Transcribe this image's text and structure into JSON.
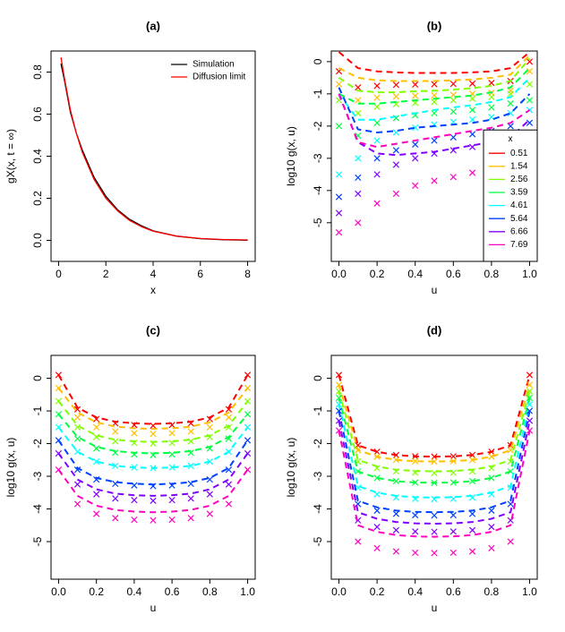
{
  "chart_data": [
    {
      "type": "line",
      "title": "(a)",
      "xlabel": "x",
      "ylabel": "gX(x, t = ∞)",
      "x": [
        0.1,
        0.25,
        0.5,
        0.75,
        1,
        1.5,
        2,
        2.5,
        3,
        3.5,
        4,
        5,
        6,
        7,
        8
      ],
      "series": [
        {
          "name": "Simulation",
          "color": "#000000",
          "values": [
            0.84,
            0.76,
            0.61,
            0.51,
            0.43,
            0.3,
            0.21,
            0.145,
            0.1,
            0.07,
            0.045,
            0.02,
            0.008,
            0.003,
            0.001
          ]
        },
        {
          "name": "Diffusion limit",
          "color": "#FF0000",
          "values": [
            0.87,
            0.77,
            0.62,
            0.51,
            0.42,
            0.29,
            0.2,
            0.14,
            0.095,
            0.065,
            0.044,
            0.02,
            0.009,
            0.004,
            0.002
          ]
        }
      ],
      "xlim": [
        -0.32,
        8.32
      ],
      "xticks": [
        0,
        2,
        4,
        6,
        8
      ],
      "ylim": [
        -0.1,
        0.9
      ],
      "yticks": [
        {
          "value": 0,
          "label": "0.0"
        },
        0.2,
        0.4,
        0.6,
        0.8
      ],
      "legend": "topright",
      "legend_box": false
    },
    {
      "type": "scatter",
      "title": "(b)",
      "xlabel": "u",
      "ylabel": "log10 g(x, u)",
      "legend_title": "x",
      "x": [
        0,
        0.1,
        0.2,
        0.3,
        0.4,
        0.5,
        0.6,
        0.7,
        0.8,
        0.9,
        1
      ],
      "series": [
        {
          "name": "0.51",
          "color": "#FF0000",
          "values": [
            -0.3,
            -0.8,
            -0.75,
            -0.72,
            -0.71,
            -0.7,
            -0.69,
            -0.68,
            -0.66,
            -0.6,
            0.0
          ],
          "line_values": [
            0.3,
            -0.2,
            -0.3,
            -0.33,
            -0.35,
            -0.35,
            -0.35,
            -0.33,
            -0.3,
            -0.2,
            0.3
          ]
        },
        {
          "name": "1.54",
          "color": "#FFBF00",
          "values": [
            -0.7,
            -1.2,
            -1.12,
            -1.08,
            -1.06,
            -1.05,
            -1.03,
            -1.0,
            -0.97,
            -0.9,
            -0.3
          ],
          "line_values": [
            -0.2,
            -0.5,
            -0.58,
            -0.6,
            -0.6,
            -0.6,
            -0.58,
            -0.55,
            -0.5,
            -0.4,
            0.2
          ]
        },
        {
          "name": "2.56",
          "color": "#80FF00",
          "values": [
            -1.2,
            -1.6,
            -1.4,
            -1.32,
            -1.28,
            -1.25,
            -1.2,
            -1.15,
            -1.1,
            -1.0,
            -0.7
          ],
          "line_values": [
            -0.5,
            -0.9,
            -0.95,
            -0.95,
            -0.92,
            -0.9,
            -0.87,
            -0.82,
            -0.75,
            -0.6,
            0.1
          ]
        },
        {
          "name": "3.59",
          "color": "#00FF40",
          "values": [
            -2.0,
            -2.3,
            -1.9,
            -1.75,
            -1.66,
            -1.6,
            -1.55,
            -1.5,
            -1.42,
            -1.3,
            -1.2
          ],
          "line_values": [
            -1.0,
            -1.3,
            -1.3,
            -1.25,
            -1.2,
            -1.15,
            -1.1,
            -1.05,
            -0.95,
            -0.8,
            -0.2
          ]
        },
        {
          "name": "4.61",
          "color": "#00FFFF",
          "values": [
            -3.5,
            -3.0,
            -2.45,
            -2.2,
            -2.05,
            -1.95,
            -1.87,
            -1.8,
            -1.72,
            -1.6,
            -1.5
          ],
          "line_values": [
            -1.0,
            -1.8,
            -1.8,
            -1.7,
            -1.6,
            -1.5,
            -1.42,
            -1.35,
            -1.25,
            -1.1,
            -0.5
          ]
        },
        {
          "name": "5.64",
          "color": "#0040FF",
          "values": [
            -4.2,
            -3.6,
            -3.0,
            -2.75,
            -2.57,
            -2.45,
            -2.35,
            -2.25,
            -2.15,
            -2.0,
            -1.9
          ],
          "line_values": [
            -0.8,
            -2.1,
            -2.2,
            -2.15,
            -2.05,
            -2.0,
            -1.95,
            -1.9,
            -1.8,
            -1.6,
            -1.0
          ]
        },
        {
          "name": "6.66",
          "color": "#8000FF",
          "values": [
            -4.7,
            -4.1,
            -3.5,
            -3.2,
            -3.0,
            -2.85,
            -2.75,
            -2.65,
            -2.55,
            -2.45,
            -2.4
          ],
          "line_values": [
            -1.0,
            -2.5,
            -2.85,
            -2.9,
            -2.85,
            -2.8,
            -2.7,
            -2.6,
            -2.5,
            -2.35,
            -1.8
          ]
        },
        {
          "name": "7.69",
          "color": "#FF00BF",
          "values": [
            -5.3,
            -5.0,
            -4.4,
            -4.1,
            -3.85,
            -3.7,
            -3.58,
            -3.45,
            -3.35,
            -3.2,
            -3.1
          ],
          "line_values": [
            -1.0,
            -2.5,
            -2.65,
            -2.55,
            -2.45,
            -2.35,
            -2.25,
            -2.15,
            -2.05,
            -1.9,
            -1.5
          ]
        }
      ],
      "xlim": [
        -0.04,
        1.04
      ],
      "xticks": [
        {
          "value": 0,
          "label": "0.0"
        },
        0.2,
        0.4,
        0.6,
        0.8,
        {
          "value": 1,
          "label": "1.0"
        }
      ],
      "ylim": [
        -6.2,
        0.33
      ],
      "yticks": [
        0,
        -1,
        -2,
        -3,
        -4,
        -5
      ],
      "legend": "bottomright",
      "legend_box": true
    },
    {
      "type": "scatter",
      "title": "(c)",
      "xlabel": "u",
      "ylabel": "log10 g(x, u)",
      "x": [
        0,
        0.1,
        0.2,
        0.3,
        0.4,
        0.5,
        0.6,
        0.7,
        0.8,
        0.9,
        1
      ],
      "series": [
        {
          "color": "#FF0000",
          "values": [
            0.1,
            -0.95,
            -1.25,
            -1.38,
            -1.43,
            -1.45,
            -1.43,
            -1.38,
            -1.25,
            -0.95,
            0.1
          ],
          "line_values": [
            0.1,
            -0.9,
            -1.2,
            -1.33,
            -1.38,
            -1.4,
            -1.38,
            -1.33,
            -1.2,
            -0.9,
            0.1
          ]
        },
        {
          "color": "#FFBF00",
          "values": [
            -0.3,
            -1.2,
            -1.5,
            -1.63,
            -1.68,
            -1.7,
            -1.68,
            -1.63,
            -1.5,
            -1.2,
            -0.3
          ],
          "line_values": [
            -0.3,
            -1.05,
            -1.35,
            -1.48,
            -1.53,
            -1.55,
            -1.53,
            -1.48,
            -1.35,
            -1.05,
            -0.3
          ]
        },
        {
          "color": "#80FF00",
          "values": [
            -0.7,
            -1.5,
            -1.8,
            -1.93,
            -1.98,
            -2.0,
            -1.98,
            -1.93,
            -1.8,
            -1.5,
            -0.7
          ],
          "line_values": [
            -0.7,
            -1.45,
            -1.75,
            -1.88,
            -1.93,
            -1.95,
            -1.93,
            -1.88,
            -1.75,
            -1.45,
            -0.7
          ]
        },
        {
          "color": "#00FF40",
          "values": [
            -1.1,
            -1.85,
            -2.15,
            -2.28,
            -2.33,
            -2.35,
            -2.33,
            -2.28,
            -2.15,
            -1.85,
            -1.1
          ],
          "line_values": [
            -1.1,
            -1.8,
            -2.1,
            -2.23,
            -2.28,
            -2.3,
            -2.28,
            -2.23,
            -2.1,
            -1.8,
            -1.1
          ]
        },
        {
          "color": "#00FFFF",
          "values": [
            -1.5,
            -2.25,
            -2.55,
            -2.68,
            -2.73,
            -2.75,
            -2.73,
            -2.68,
            -2.55,
            -2.25,
            -1.5
          ],
          "line_values": [
            -1.5,
            -2.25,
            -2.55,
            -2.68,
            -2.73,
            -2.75,
            -2.73,
            -2.68,
            -2.55,
            -2.25,
            -1.5
          ]
        },
        {
          "color": "#0040FF",
          "values": [
            -1.9,
            -2.8,
            -3.1,
            -3.23,
            -3.28,
            -3.3,
            -3.28,
            -3.23,
            -3.1,
            -2.8,
            -1.9
          ],
          "line_values": [
            -1.9,
            -2.75,
            -3.05,
            -3.18,
            -3.23,
            -3.25,
            -3.23,
            -3.18,
            -3.05,
            -2.75,
            -1.9
          ]
        },
        {
          "color": "#8000FF",
          "values": [
            -2.3,
            -3.25,
            -3.55,
            -3.68,
            -3.73,
            -3.75,
            -3.73,
            -3.68,
            -3.55,
            -3.25,
            -2.3
          ],
          "line_values": [
            -2.3,
            -3.1,
            -3.4,
            -3.53,
            -3.58,
            -3.6,
            -3.58,
            -3.53,
            -3.4,
            -3.1,
            -2.3
          ]
        },
        {
          "color": "#FF00BF",
          "values": [
            -2.8,
            -3.85,
            -4.15,
            -4.28,
            -4.33,
            -4.35,
            -4.33,
            -4.28,
            -4.15,
            -3.85,
            -2.8
          ],
          "line_values": [
            -2.8,
            -3.6,
            -3.9,
            -4.03,
            -4.08,
            -4.1,
            -4.08,
            -4.03,
            -3.9,
            -3.6,
            -2.8
          ]
        }
      ],
      "xlim": [
        -0.04,
        1.04
      ],
      "xticks": [
        {
          "value": 0,
          "label": "0.0"
        },
        0.2,
        0.4,
        0.6,
        0.8,
        {
          "value": 1,
          "label": "1.0"
        }
      ],
      "ylim": [
        -6.15,
        0.7
      ],
      "yticks": [
        0,
        -1,
        -2,
        -3,
        -4,
        -5
      ]
    },
    {
      "type": "scatter",
      "title": "(d)",
      "xlabel": "u",
      "ylabel": "log10 g(x, u)",
      "x": [
        0,
        0.1,
        0.2,
        0.3,
        0.4,
        0.5,
        0.6,
        0.7,
        0.8,
        0.9,
        1
      ],
      "series": [
        {
          "color": "#FF0000",
          "values": [
            0.1,
            -2.05,
            -2.25,
            -2.35,
            -2.39,
            -2.4,
            -2.39,
            -2.35,
            -2.25,
            -2.05,
            0.1
          ],
          "line_values": [
            0.1,
            -2.05,
            -2.25,
            -2.35,
            -2.39,
            -2.4,
            -2.39,
            -2.35,
            -2.25,
            -2.05,
            0.1
          ]
        },
        {
          "color": "#FFBF00",
          "values": [
            -0.2,
            -2.2,
            -2.4,
            -2.5,
            -2.54,
            -2.55,
            -2.54,
            -2.5,
            -2.4,
            -2.2,
            -0.2
          ],
          "line_values": [
            -0.2,
            -2.2,
            -2.4,
            -2.5,
            -2.54,
            -2.55,
            -2.54,
            -2.5,
            -2.4,
            -2.2,
            -0.2
          ]
        },
        {
          "color": "#80FF00",
          "values": [
            -0.4,
            -2.55,
            -2.75,
            -2.85,
            -2.89,
            -2.9,
            -2.89,
            -2.85,
            -2.75,
            -2.55,
            -0.4
          ],
          "line_values": [
            -0.4,
            -2.5,
            -2.7,
            -2.8,
            -2.84,
            -2.85,
            -2.84,
            -2.8,
            -2.7,
            -2.5,
            -0.4
          ]
        },
        {
          "color": "#00FF40",
          "values": [
            -0.6,
            -2.85,
            -3.05,
            -3.15,
            -3.19,
            -3.2,
            -3.19,
            -3.15,
            -3.05,
            -2.85,
            -0.6
          ],
          "line_values": [
            -0.6,
            -2.85,
            -3.05,
            -3.15,
            -3.19,
            -3.2,
            -3.19,
            -3.15,
            -3.05,
            -2.85,
            -0.6
          ]
        },
        {
          "color": "#00FFFF",
          "values": [
            -0.8,
            -3.35,
            -3.55,
            -3.65,
            -3.69,
            -3.7,
            -3.69,
            -3.65,
            -3.55,
            -3.35,
            -0.8
          ],
          "line_values": [
            -0.8,
            -3.3,
            -3.5,
            -3.6,
            -3.64,
            -3.65,
            -3.64,
            -3.6,
            -3.5,
            -3.3,
            -0.8
          ]
        },
        {
          "color": "#0040FF",
          "values": [
            -1.0,
            -3.85,
            -4.05,
            -4.15,
            -4.19,
            -4.2,
            -4.19,
            -4.15,
            -4.05,
            -3.85,
            -1.0
          ],
          "line_values": [
            -1.0,
            -3.75,
            -3.95,
            -4.05,
            -4.09,
            -4.1,
            -4.09,
            -4.05,
            -3.95,
            -3.75,
            -1.0
          ]
        },
        {
          "color": "#8000FF",
          "values": [
            -1.3,
            -4.35,
            -4.55,
            -4.65,
            -4.69,
            -4.7,
            -4.69,
            -4.65,
            -4.55,
            -4.35,
            -1.3
          ],
          "line_values": [
            -1.3,
            -4.1,
            -4.3,
            -4.4,
            -4.44,
            -4.45,
            -4.44,
            -4.4,
            -4.3,
            -4.1,
            -1.3
          ]
        },
        {
          "color": "#FF00BF",
          "values": [
            -1.6,
            -5.0,
            -5.2,
            -5.3,
            -5.34,
            -5.35,
            -5.34,
            -5.3,
            -5.2,
            -5.0,
            -1.6
          ],
          "line_values": [
            -1.6,
            -4.5,
            -4.7,
            -4.8,
            -4.84,
            -4.85,
            -4.84,
            -4.8,
            -4.7,
            -4.5,
            -1.6
          ]
        }
      ],
      "xlim": [
        -0.04,
        1.04
      ],
      "xticks": [
        {
          "value": 0,
          "label": "0.0"
        },
        0.2,
        0.4,
        0.6,
        0.8,
        {
          "value": 1,
          "label": "1.0"
        }
      ],
      "ylim": [
        -6.15,
        0.7
      ],
      "yticks": [
        0,
        -1,
        -2,
        -3,
        -4,
        -5
      ]
    }
  ]
}
